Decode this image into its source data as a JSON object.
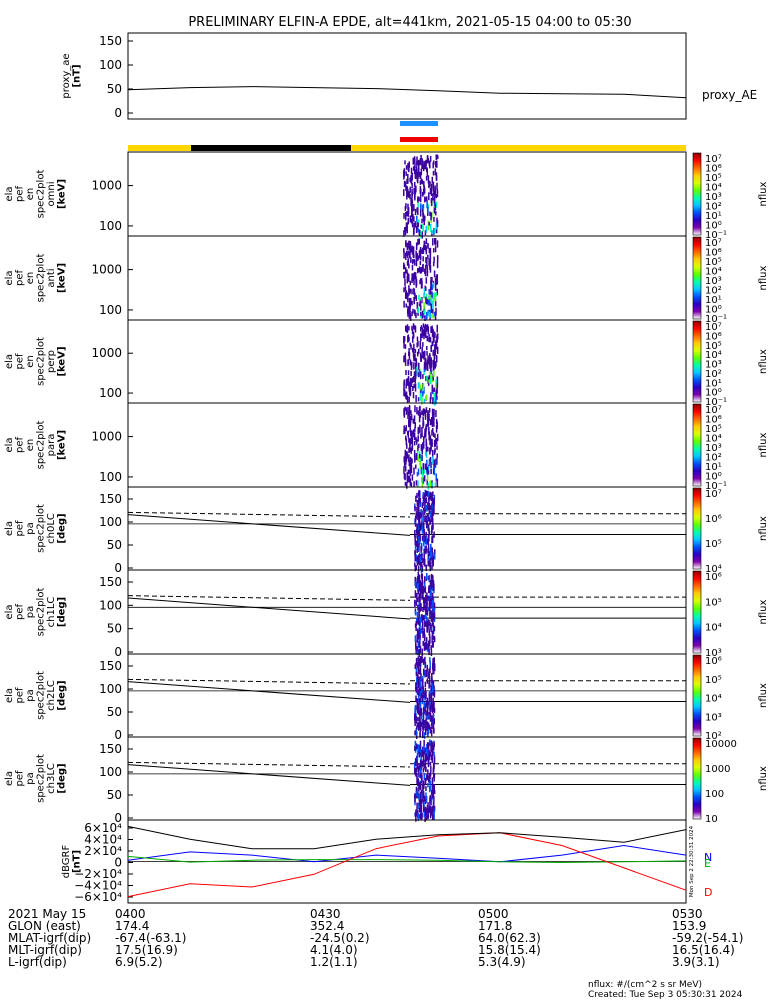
{
  "title": "PRELIMINARY ELFIN-A EPDE, alt=441km, 2021-05-15 04:00 to 05:30",
  "chart_data": {
    "type": "line",
    "time_range": [
      "04:00",
      "05:30"
    ],
    "panels": [
      {
        "kind": "line",
        "ylabel": [
          "proxy_ae",
          "[nT]"
        ],
        "yticks": [
          "150",
          "100",
          "50",
          "0"
        ],
        "ylim": [
          -10,
          160
        ],
        "legend": "proxy_AE",
        "series": [
          {
            "name": "proxy_AE",
            "x": [
              "04:00",
              "04:10",
              "04:20",
              "04:30",
              "04:40",
              "04:50",
              "05:00",
              "05:10",
              "05:20",
              "05:30"
            ],
            "y": [
              48,
              52,
              54,
              52,
              50,
              46,
              41,
              40,
              39,
              32
            ]
          }
        ]
      },
      {
        "kind": "spectrogram",
        "ylabel": [
          "ela",
          "pef",
          "en",
          "spec2plot",
          "omni",
          "[keV]"
        ],
        "yticks": [
          "1000",
          "100"
        ],
        "cbar_label": "nflux",
        "cbar_ticks": [
          "10⁷",
          "10⁶",
          "10⁵",
          "10⁴",
          "10³",
          "10²",
          "10¹",
          "10⁰",
          "10⁻¹"
        ]
      },
      {
        "kind": "spectrogram",
        "ylabel": [
          "ela",
          "pef",
          "en",
          "spec2plot",
          "anti",
          "[keV]"
        ],
        "yticks": [
          "1000",
          "100"
        ],
        "cbar_label": "nflux",
        "cbar_ticks": [
          "10⁷",
          "10⁶",
          "10⁵",
          "10⁴",
          "10³",
          "10²",
          "10¹",
          "10⁰",
          "10⁻¹"
        ]
      },
      {
        "kind": "spectrogram",
        "ylabel": [
          "ela",
          "pef",
          "en",
          "spec2plot",
          "perp",
          "[keV]"
        ],
        "yticks": [
          "1000",
          "100"
        ],
        "cbar_label": "nflux",
        "cbar_ticks": [
          "10⁷",
          "10⁶",
          "10⁵",
          "10⁴",
          "10³",
          "10²",
          "10¹",
          "10⁰",
          "10⁻¹"
        ]
      },
      {
        "kind": "spectrogram",
        "ylabel": [
          "ela",
          "pef",
          "en",
          "spec2plot",
          "para",
          "[keV]"
        ],
        "yticks": [
          "1000",
          "100"
        ],
        "cbar_label": "nflux",
        "cbar_ticks": [
          "10⁷",
          "10⁶",
          "10⁵",
          "10⁴",
          "10³",
          "10²",
          "10¹",
          "10⁰",
          "10⁻¹"
        ]
      },
      {
        "kind": "pitch",
        "ylabel": [
          "ela",
          "pef",
          "pa",
          "spec2plot",
          "ch0LC",
          "[deg]"
        ],
        "yticks": [
          "150",
          "100",
          "50",
          "0"
        ],
        "cbar_label": "nflux",
        "cbar_ticks": [
          "10⁷",
          "10⁶",
          "10⁵",
          "10⁴"
        ]
      },
      {
        "kind": "pitch",
        "ylabel": [
          "ela",
          "pef",
          "pa",
          "spec2plot",
          "ch1LC",
          "[deg]"
        ],
        "yticks": [
          "150",
          "100",
          "50",
          "0"
        ],
        "cbar_label": "nflux",
        "cbar_ticks": [
          "10⁶",
          "10⁵",
          "10⁴",
          "10³"
        ]
      },
      {
        "kind": "pitch",
        "ylabel": [
          "ela",
          "pef",
          "pa",
          "spec2plot",
          "ch2LC",
          "[deg]"
        ],
        "yticks": [
          "150",
          "100",
          "50",
          "0"
        ],
        "cbar_label": "nflux",
        "cbar_ticks": [
          "10⁶",
          "10⁵",
          "10⁴",
          "10³",
          "10²"
        ]
      },
      {
        "kind": "pitch",
        "ylabel": [
          "ela",
          "pef",
          "pa",
          "spec2plot",
          "ch3LC",
          "[deg]"
        ],
        "yticks": [
          "150",
          "100",
          "50",
          "0"
        ],
        "cbar_label": "nflux",
        "cbar_ticks": [
          "10000",
          "1000",
          "100",
          "10"
        ]
      },
      {
        "kind": "line",
        "ylabel": [
          "dBGRF",
          "[nT]"
        ],
        "yticks": [
          "6×10⁴",
          "4×10⁴",
          "2×10⁴",
          "0",
          "−2×10⁴",
          "−4×10⁴",
          "−6×10⁴"
        ],
        "ylim": [
          -65000,
          65000
        ],
        "side_text": "Mon Sep 2 22:30:31 2024",
        "series": [
          {
            "name": "N",
            "color": "#0000ff",
            "x": [
              "04:00",
              "04:10",
              "04:20",
              "04:30",
              "04:40",
              "04:50",
              "05:00",
              "05:10",
              "05:20",
              "05:30"
            ],
            "y": [
              2000,
              15000,
              10000,
              -500,
              10000,
              5000,
              -500,
              10000,
              25000,
              10000
            ]
          },
          {
            "name": "E",
            "color": "#00aa00",
            "x": [
              "04:00",
              "04:10",
              "04:20",
              "04:30",
              "04:40",
              "04:50",
              "05:00",
              "05:10",
              "05:20",
              "05:30"
            ],
            "y": [
              8000,
              -1000,
              2000,
              3000,
              3000,
              2000,
              -500,
              -1500,
              -500,
              1000
            ]
          },
          {
            "name": "D",
            "color": "#ff0000",
            "x": [
              "04:00",
              "04:10",
              "04:20",
              "04:30",
              "04:40",
              "04:50",
              "05:00",
              "05:10",
              "05:20",
              "05:30"
            ],
            "y": [
              -55000,
              -35000,
              -40000,
              -20000,
              20000,
              40000,
              45000,
              25000,
              -10000,
              -45000
            ]
          },
          {
            "color": "#000000",
            "x": [
              "04:00",
              "04:10",
              "04:20",
              "04:30",
              "04:40",
              "04:50",
              "05:00",
              "05:10",
              "05:20",
              "05:30"
            ],
            "y": [
              55000,
              35000,
              20000,
              20000,
              35000,
              42000,
              45000,
              38000,
              30000,
              50000
            ]
          }
        ]
      }
    ]
  },
  "footer": {
    "rows": [
      [
        "2021 May 15",
        "0400",
        "0430",
        "0500",
        "0530"
      ],
      [
        "GLON (east)",
        "174.4",
        "352.4",
        "171.8",
        "153.9"
      ],
      [
        "MLAT-igrf(dip)",
        "-67.4(-63.1)",
        "-24.5(0.2)",
        "64.0(62.3)",
        "-59.2(-54.1)"
      ],
      [
        "MLT-igrf(dip)",
        "17.5(16.9)",
        "4.1(4.0)",
        "15.8(15.4)",
        "16.5(16.4)"
      ],
      [
        "L-igrf(dip)",
        "6.9(5.2)",
        "1.2(1.1)",
        "5.3(4.9)",
        "3.9(3.1)"
      ]
    ],
    "units_note": "nflux: #/(cm^2 s sr MeV)",
    "created": "Created: Tue Sep  3 05:30:31 2024"
  },
  "colors": {
    "sunlit_bar": "#ffd700",
    "shadow_bar": "#000000",
    "science_blue": "#1e90ff",
    "science_red": "#ee0000"
  }
}
